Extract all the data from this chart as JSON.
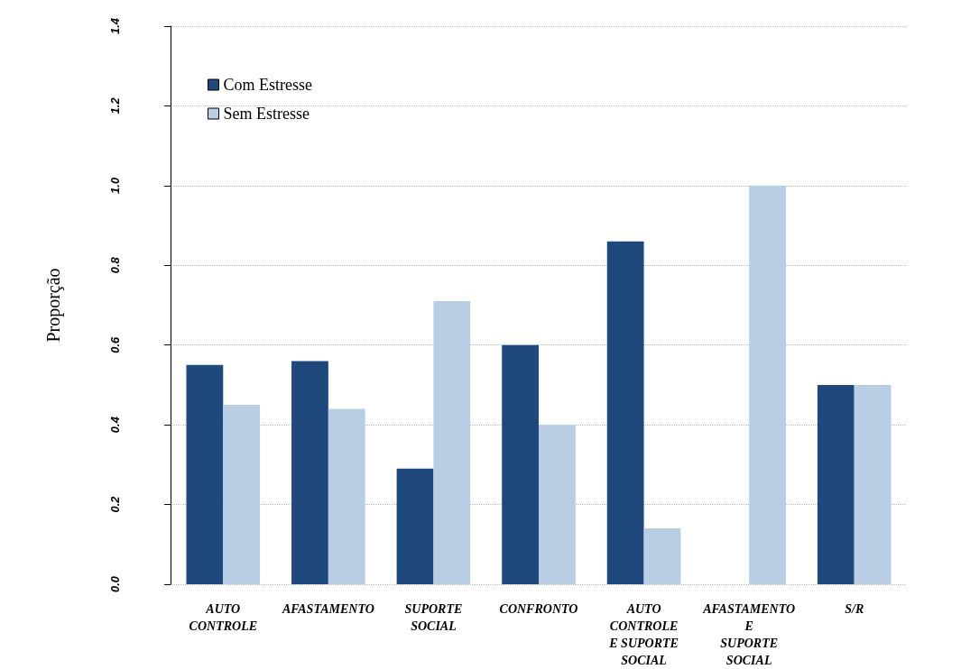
{
  "chart_data": {
    "type": "bar",
    "ylabel": "Proporção",
    "categories": [
      "AUTO\nCONTROLE",
      "AFASTAMENTO",
      "SUPORTE\nSOCIAL",
      "CONFRONTO",
      "AUTO\nCONTROLE\nE SUPORTE\nSOCIAL",
      "AFASTAMENTO\nE\nSUPORTE\nSOCIAL",
      "S/R"
    ],
    "series": [
      {
        "name": "Com Estresse",
        "color": "#1f497d",
        "values": [
          0.55,
          0.56,
          0.29,
          0.6,
          0.86,
          0,
          0.5
        ]
      },
      {
        "name": "Sem Estresse",
        "color": "#b9cde5",
        "values": [
          0.45,
          0.44,
          0.71,
          0.4,
          0.14,
          1,
          0.5
        ]
      }
    ],
    "ylim": [
      0,
      1.4
    ],
    "yticks": [
      {
        "value": 0,
        "label": "0.0"
      },
      {
        "value": 0.2,
        "label": "0.2"
      },
      {
        "value": 0.4,
        "label": "0.4"
      },
      {
        "value": 0.6,
        "label": "0.6"
      },
      {
        "value": 0.8,
        "label": "0.8"
      },
      {
        "value": 1,
        "label": "1.0"
      },
      {
        "value": 1.2,
        "label": "1.2"
      },
      {
        "value": 1.4,
        "label": "1.4"
      }
    ],
    "grid": "y",
    "legend": "top left"
  }
}
